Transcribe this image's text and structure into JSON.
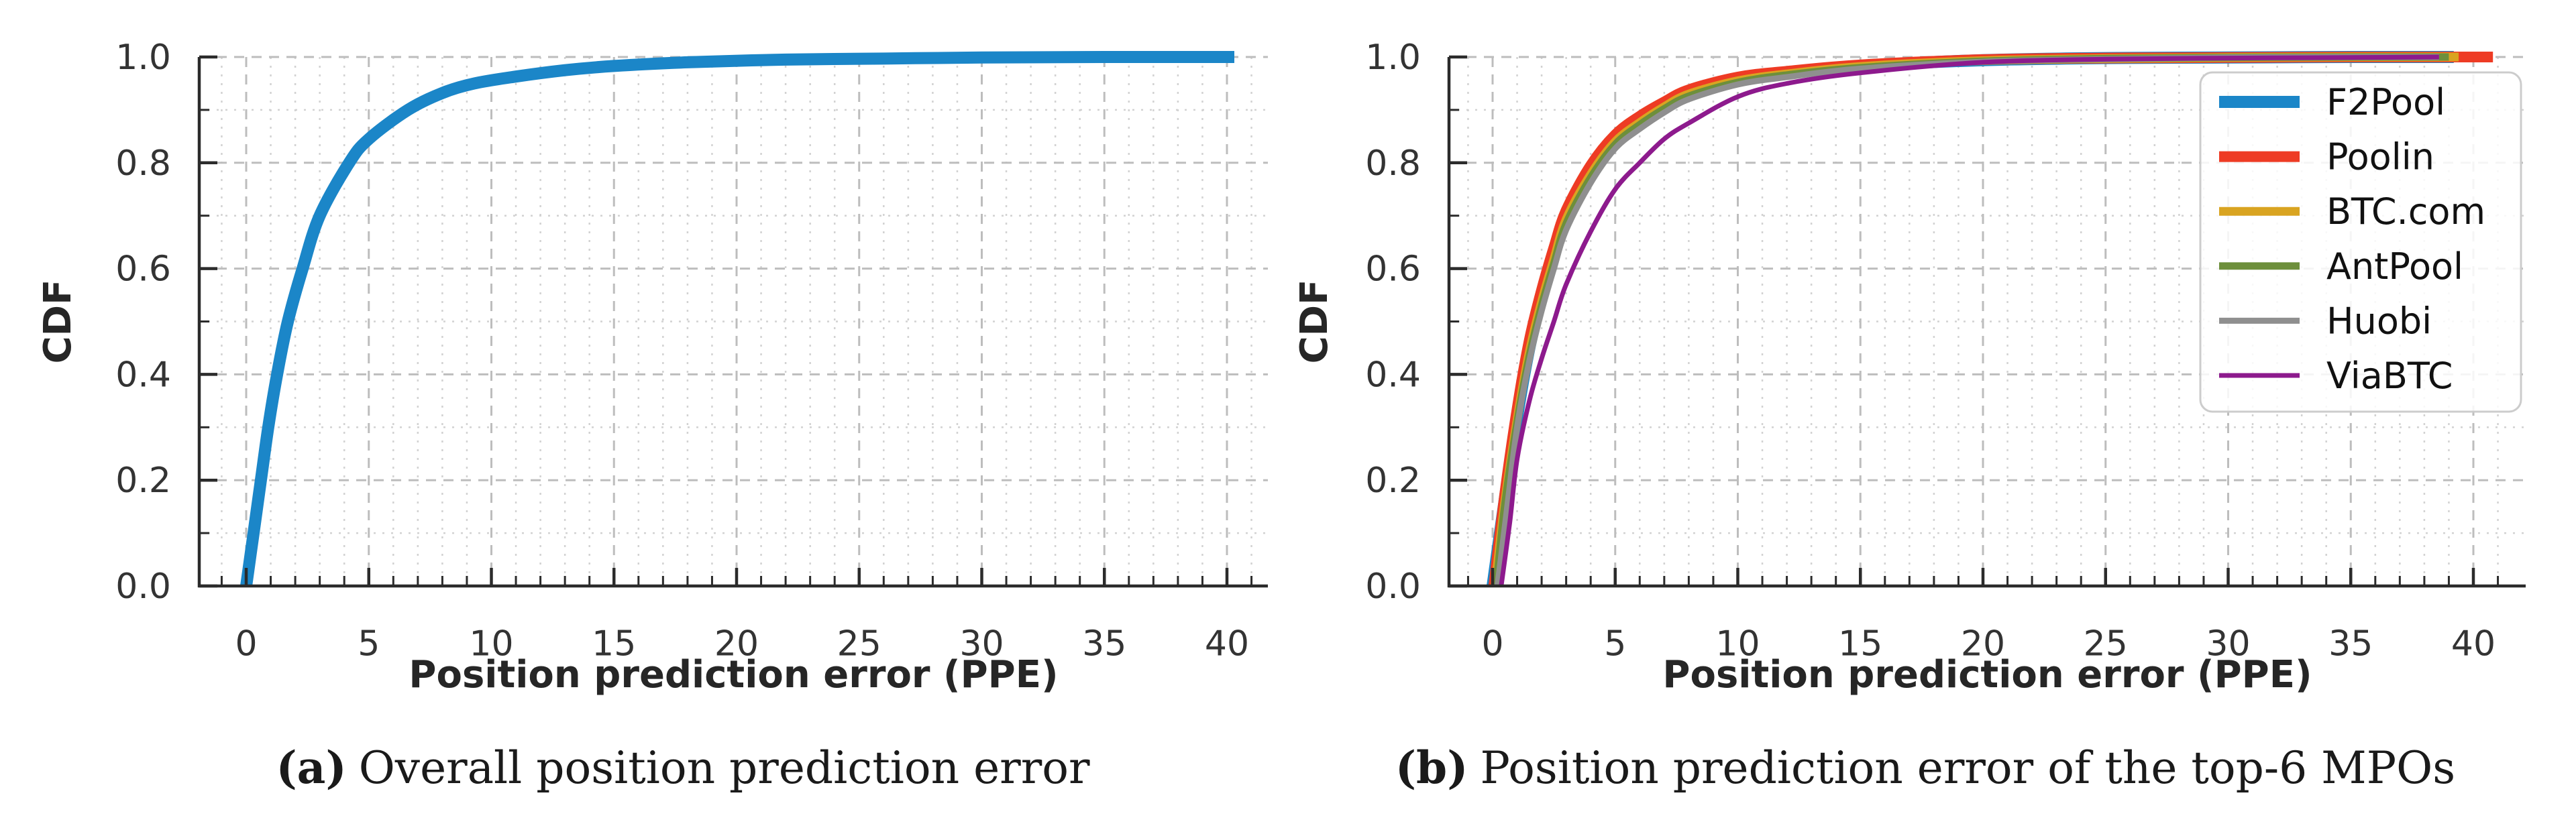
{
  "figure": {
    "background": "#ffffff",
    "text_color": "#1a1a1a",
    "axis_color": "#2b2b2b",
    "tick_label_color": "#333333",
    "grid_major_color": "#bdbdbd",
    "grid_minor_color": "#d2d2d2",
    "legend_border_color": "#cccccc",
    "legend_bg_color": "#ffffff"
  },
  "chart_data": [
    {
      "type": "line",
      "variant": "cdf",
      "title": "",
      "xlabel": "Position prediction error (PPE)",
      "ylabel": "CDF",
      "caption": {
        "tag": "(a)",
        "text": "Overall position prediction error"
      },
      "xlim": [
        -1.9,
        41.7
      ],
      "ylim": [
        0,
        1.0
      ],
      "xticks": {
        "values": [
          0,
          5,
          10,
          15,
          20,
          25,
          30,
          35,
          40
        ],
        "labels": [
          "0",
          "5",
          "10",
          "15",
          "20",
          "25",
          "30",
          "35",
          "40"
        ],
        "minor_step": 1
      },
      "yticks": {
        "values": [
          0,
          0.2,
          0.4,
          0.6,
          0.8,
          1.0
        ],
        "labels": [
          "0.0",
          "0.2",
          "0.4",
          "0.6",
          "0.8",
          "1.0"
        ],
        "minor_step": 0.1
      },
      "grid": {
        "major": "dashed",
        "minor": "dotted"
      },
      "legend": null,
      "series": [
        {
          "label": "",
          "color": "#1b86c8",
          "linewidth": 18,
          "x": [
            0,
            0.3,
            0.6,
            0.9,
            1.26,
            1.7,
            2.3,
            3,
            4.2,
            5,
            6.6,
            8,
            9.3,
            11,
            13,
            15,
            18,
            22,
            26,
            30,
            35,
            40.3
          ],
          "y": [
            0,
            0.1,
            0.2,
            0.3,
            0.4,
            0.5,
            0.6,
            0.7,
            0.8,
            0.845,
            0.9,
            0.932,
            0.95,
            0.963,
            0.975,
            0.983,
            0.99,
            0.995,
            0.997,
            0.999,
            1.0,
            1.0
          ]
        }
      ]
    },
    {
      "type": "line",
      "variant": "cdf",
      "title": "",
      "xlabel": "Position prediction error (PPE)",
      "ylabel": "CDF",
      "caption": {
        "tag": "(b)",
        "text": "Position prediction error of the top-6 MPOs"
      },
      "xlim": [
        -1.85,
        41.7
      ],
      "ylim": [
        0,
        1.0
      ],
      "xticks": {
        "values": [
          0,
          5,
          10,
          15,
          20,
          25,
          30,
          35,
          40
        ],
        "labels": [
          "0",
          "5",
          "10",
          "15",
          "20",
          "25",
          "30",
          "35",
          "40"
        ],
        "minor_step": 1
      },
      "yticks": {
        "values": [
          0,
          0.2,
          0.4,
          0.6,
          0.8,
          1.0
        ],
        "labels": [
          "0.0",
          "0.2",
          "0.4",
          "0.6",
          "0.8",
          "1.0"
        ],
        "minor_step": 0.1
      },
      "grid": {
        "major": "dashed",
        "minor": "dotted"
      },
      "legend": {
        "position": "upper right"
      },
      "series": [
        {
          "label": "F2Pool",
          "color": "#1b86c8",
          "linewidth": 18,
          "x": [
            0,
            0.5,
            1,
            1.5,
            2,
            2.5,
            3,
            4,
            5,
            6,
            7,
            8,
            10,
            12,
            15,
            20,
            25,
            30,
            35,
            39.2
          ],
          "y": [
            0,
            0.165,
            0.32,
            0.45,
            0.545,
            0.625,
            0.7,
            0.785,
            0.845,
            0.88,
            0.91,
            0.933,
            0.958,
            0.97,
            0.983,
            0.994,
            0.998,
            0.999,
            1.0,
            1.0
          ]
        },
        {
          "label": "Poolin",
          "color": "#ee3b24",
          "linewidth": 16,
          "x": [
            0.05,
            0.5,
            1,
            1.5,
            2,
            2.5,
            3,
            4,
            5,
            6,
            7,
            8,
            10,
            12,
            15,
            20,
            25,
            30,
            35,
            38.8,
            40.8
          ],
          "y": [
            0,
            0.175,
            0.335,
            0.465,
            0.56,
            0.64,
            0.71,
            0.795,
            0.853,
            0.888,
            0.915,
            0.938,
            0.962,
            0.973,
            0.985,
            0.995,
            0.998,
            0.999,
            1.0,
            1.0,
            1.0
          ]
        },
        {
          "label": "BTC.com",
          "color": "#d9a421",
          "linewidth": 13,
          "x": [
            0.1,
            0.5,
            1,
            1.5,
            2,
            2.5,
            3,
            4,
            5,
            6,
            7,
            8,
            10,
            12,
            15,
            20,
            25,
            30,
            35,
            39.4
          ],
          "y": [
            0,
            0.16,
            0.315,
            0.443,
            0.538,
            0.618,
            0.693,
            0.778,
            0.84,
            0.876,
            0.906,
            0.93,
            0.955,
            0.968,
            0.982,
            0.993,
            0.997,
            0.999,
            1.0,
            1.0
          ]
        },
        {
          "label": "AntPool",
          "color": "#6d8f3b",
          "linewidth": 11,
          "x": [
            0.15,
            0.5,
            1,
            1.5,
            2,
            2.5,
            3,
            4,
            5,
            6,
            7,
            8,
            10,
            12,
            15,
            20,
            25,
            30,
            35,
            39.0
          ],
          "y": [
            0,
            0.155,
            0.31,
            0.435,
            0.53,
            0.61,
            0.685,
            0.772,
            0.835,
            0.872,
            0.902,
            0.926,
            0.952,
            0.966,
            0.98,
            0.992,
            0.997,
            0.999,
            1.0,
            1.0
          ]
        },
        {
          "label": "Huobi",
          "color": "#8f8f8f",
          "linewidth": 9,
          "x": [
            0.2,
            0.6,
            1,
            1.5,
            2,
            2.5,
            3,
            4,
            5,
            6,
            7,
            8,
            10,
            12,
            15,
            20,
            25,
            30,
            35,
            38.6
          ],
          "y": [
            0,
            0.15,
            0.3,
            0.425,
            0.52,
            0.6,
            0.673,
            0.762,
            0.827,
            0.864,
            0.895,
            0.92,
            0.948,
            0.962,
            0.978,
            0.991,
            0.996,
            0.999,
            1.0,
            1.0
          ]
        },
        {
          "label": "ViaBTC",
          "color": "#8d1a8d",
          "linewidth": 7,
          "x": [
            0.35,
            0.7,
            1,
            1.5,
            2,
            2.5,
            3,
            4,
            5,
            6,
            7,
            8,
            10,
            12,
            15,
            20,
            25,
            30,
            35,
            38.6
          ],
          "y": [
            0,
            0.12,
            0.24,
            0.35,
            0.43,
            0.5,
            0.57,
            0.67,
            0.75,
            0.8,
            0.845,
            0.875,
            0.925,
            0.95,
            0.97,
            0.99,
            0.996,
            0.998,
            0.999,
            1.0
          ]
        }
      ]
    }
  ]
}
